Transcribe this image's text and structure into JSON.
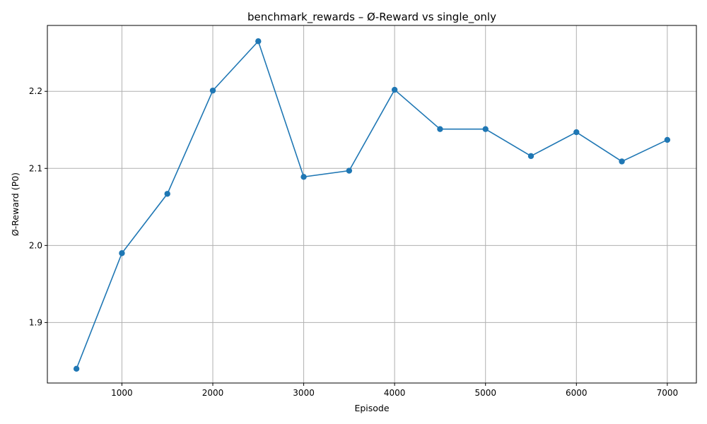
{
  "chart_data": {
    "type": "line",
    "title": "benchmark_rewards – Ø-Reward vs single_only",
    "xlabel": "Episode",
    "ylabel": "Ø-Reward (P0)",
    "xlim": [
      180,
      7320
    ],
    "ylim": [
      1.8215,
      2.2855
    ],
    "xticks": [
      1000,
      2000,
      3000,
      4000,
      5000,
      6000,
      7000
    ],
    "yticks": [
      1.9,
      2.0,
      2.1,
      2.2
    ],
    "grid": true,
    "series": [
      {
        "color": "#1f77b4",
        "marker": "circle",
        "x": [
          500,
          1000,
          1500,
          2000,
          2500,
          3000,
          3500,
          4000,
          4500,
          5000,
          5500,
          6000,
          6500,
          7000
        ],
        "y": [
          1.84,
          1.99,
          2.067,
          2.201,
          2.265,
          2.089,
          2.097,
          2.202,
          2.151,
          2.151,
          2.116,
          2.147,
          2.109,
          2.137
        ]
      }
    ]
  }
}
